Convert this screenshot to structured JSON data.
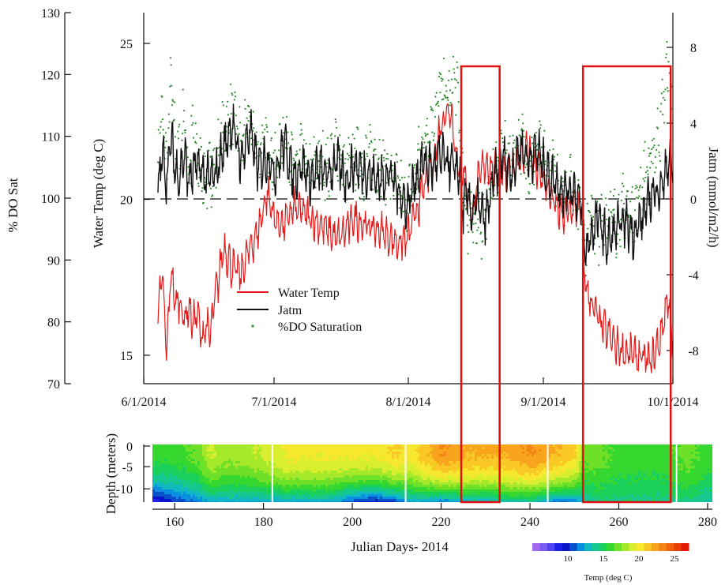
{
  "chart_data": [
    {
      "type": "line",
      "xlabel": "",
      "dates": [
        "6/1/2014",
        "7/1/2014",
        "8/1/2014",
        "9/1/2014",
        "10/1/2014"
      ],
      "xlim_julian": [
        152,
        274
      ],
      "axes": {
        "do_sat": {
          "label": "% DO Sat",
          "ticks": [
            70,
            80,
            90,
            100,
            110,
            120,
            130
          ],
          "ylim": [
            70,
            130
          ]
        },
        "water_temp": {
          "label": "Water Temp (deg C)",
          "ticks": [
            15,
            20,
            25
          ],
          "ylim": [
            14,
            26
          ]
        },
        "jatm": {
          "label": "Jatm (mmol/m2/h)",
          "ticks": [
            -8,
            -4,
            0,
            4,
            8
          ],
          "ylim": [
            -10,
            10
          ]
        }
      },
      "reference_line": {
        "axis": "jatm",
        "value": 0,
        "style": "dashed"
      },
      "legend": {
        "placement": "lower-left",
        "entries": [
          "Water Temp",
          "Jatm",
          "%DO Saturation"
        ]
      },
      "series": [
        {
          "name": "Water Temp",
          "axis": "water_temp",
          "color": "#e21a1a",
          "x": [
            155,
            156,
            157,
            158,
            159,
            160,
            161,
            162,
            163,
            164,
            165,
            166,
            167,
            168,
            169,
            170,
            172,
            174,
            176,
            178,
            180,
            182,
            184,
            186,
            188,
            190,
            192,
            194,
            196,
            198,
            200,
            202,
            204,
            206,
            208,
            210,
            212,
            214,
            216,
            218,
            220,
            222,
            224,
            225,
            226,
            227,
            228,
            230,
            232,
            234,
            236,
            238,
            240,
            242,
            244,
            246,
            248,
            250,
            252,
            253,
            254,
            256,
            258,
            260,
            262,
            264,
            266,
            268,
            270,
            271,
            272,
            273
          ],
          "values": [
            16.5,
            17.5,
            15.0,
            17.8,
            16.6,
            16.8,
            16.1,
            16.6,
            16.0,
            16.4,
            15.5,
            16.0,
            15.6,
            16.8,
            17.5,
            18.5,
            17.8,
            17.6,
            18.4,
            19.0,
            20.2,
            19.3,
            19.2,
            19.7,
            19.6,
            19.4,
            19.2,
            19.0,
            18.7,
            19.0,
            19.4,
            19.2,
            19.1,
            19.0,
            18.8,
            18.6,
            18.7,
            19.5,
            20.4,
            21.2,
            22.5,
            23.0,
            20.8,
            21.0,
            20.2,
            19.4,
            20.4,
            21.2,
            20.9,
            21.0,
            20.8,
            21.2,
            21.6,
            21.0,
            20.4,
            19.8,
            19.4,
            19.8,
            19.6,
            17.2,
            16.8,
            16.1,
            15.7,
            15.3,
            15.1,
            15.0,
            14.9,
            14.8,
            15.5,
            16.2,
            17.0,
            15.2
          ]
        },
        {
          "name": "Jatm",
          "axis": "jatm",
          "color": "#111111",
          "x": [
            155,
            156,
            157,
            158,
            159,
            160,
            161,
            162,
            164,
            166,
            168,
            170,
            172,
            174,
            176,
            178,
            180,
            182,
            184,
            186,
            188,
            190,
            192,
            194,
            196,
            198,
            200,
            202,
            204,
            206,
            208,
            210,
            212,
            214,
            216,
            218,
            220,
            222,
            224,
            225,
            226,
            227,
            228,
            230,
            232,
            234,
            236,
            238,
            240,
            242,
            244,
            246,
            248,
            250,
            252,
            253,
            254,
            256,
            258,
            260,
            262,
            264,
            266,
            268,
            270,
            271,
            272,
            273
          ],
          "values": [
            0.3,
            2.5,
            1.0,
            3.2,
            1.5,
            1.2,
            2.4,
            1.0,
            1.8,
            1.1,
            1.2,
            2.6,
            4.0,
            2.0,
            3.6,
            1.6,
            2.2,
            1.4,
            3.0,
            1.2,
            1.8,
            1.0,
            1.6,
            1.3,
            2.0,
            1.0,
            1.8,
            1.5,
            1.2,
            1.0,
            1.4,
            0.5,
            -0.4,
            1.0,
            2.0,
            1.6,
            2.2,
            1.8,
            1.5,
            -0.6,
            0.3,
            -0.8,
            -0.2,
            -1.2,
            1.0,
            2.2,
            1.4,
            2.8,
            2.0,
            2.6,
            1.4,
            1.0,
            0.4,
            0.6,
            -0.4,
            -3.0,
            -2.0,
            -1.0,
            -2.4,
            -1.6,
            -1.2,
            -1.8,
            -1.0,
            0.2,
            0.6,
            1.0,
            2.2,
            1.8
          ]
        },
        {
          "name": "%DO Saturation",
          "axis": "do_sat",
          "color": "#2e8b2e",
          "x": [
            155,
            156,
            157,
            158,
            159,
            160,
            161,
            162,
            163,
            164,
            166,
            168,
            170,
            172,
            174,
            176,
            178,
            180,
            182,
            184,
            186,
            188,
            190,
            192,
            194,
            196,
            198,
            200,
            202,
            204,
            206,
            208,
            210,
            212,
            214,
            216,
            218,
            220,
            222,
            223,
            224,
            225,
            226,
            227,
            228,
            230,
            232,
            234,
            236,
            238,
            240,
            242,
            244,
            246,
            248,
            250,
            252,
            253,
            254,
            256,
            258,
            260,
            262,
            264,
            266,
            268,
            270,
            271,
            272,
            273
          ],
          "values": [
            107,
            112,
            104,
            118,
            108,
            106,
            113,
            103,
            110,
            105,
            102,
            104,
            110,
            113,
            108,
            112,
            106,
            108,
            104,
            110,
            104,
            106,
            103,
            105,
            104,
            108,
            103,
            106,
            104,
            106,
            105,
            103,
            101,
            98,
            103,
            109,
            112,
            117,
            115,
            119,
            113,
            100,
            95,
            98,
            93,
            96,
            103,
            107,
            105,
            109,
            104,
            107,
            104,
            103,
            100,
            101,
            97,
            92,
            96,
            94,
            97,
            95,
            98,
            96,
            102,
            105,
            110,
            116,
            121,
            112
          ]
        }
      ],
      "annotation_boxes": [
        {
          "x_start_julian": 224.5,
          "x_end_julian": 233.3,
          "color": "#e01010"
        },
        {
          "x_start_julian": 252.4,
          "x_end_julian": 272.5,
          "color": "#e01010"
        }
      ]
    },
    {
      "type": "heatmap",
      "xlabel": "Julian Days- 2014",
      "ylabel": "Depth (meters)",
      "xticks": [
        160,
        180,
        200,
        220,
        240,
        260,
        280
      ],
      "yticks": [
        0,
        -5,
        -10
      ],
      "xlim": [
        155,
        282
      ],
      "ylim": [
        -13,
        0
      ],
      "colorbar": {
        "label": "Temp (deg C)",
        "ticks": [
          10,
          15,
          20,
          25
        ],
        "range": [
          5,
          27
        ],
        "colors": [
          "#a468f0",
          "#7a5cf2",
          "#4c44f0",
          "#1e22e8",
          "#0a14c8",
          "#0a50c8",
          "#0a8ee0",
          "#10b8c4",
          "#16c88e",
          "#1ad05a",
          "#36d830",
          "#6ee028",
          "#a6e82a",
          "#d8ee2e",
          "#f6e82c",
          "#fac824",
          "#f8a41c",
          "#f48414",
          "#f0640e",
          "#ec4008",
          "#e41806"
        ]
      },
      "temperature_profile": {
        "days": [
          155,
          160,
          165,
          168,
          170,
          175,
          180,
          185,
          190,
          195,
          200,
          205,
          210,
          213,
          215,
          220,
          225,
          230,
          235,
          240,
          245,
          250,
          252,
          255,
          260,
          265,
          270,
          275,
          280
        ],
        "surface": [
          16,
          16,
          17,
          19,
          18,
          18,
          19,
          20,
          20,
          20,
          20,
          20,
          21,
          20,
          21,
          23,
          22,
          22,
          22,
          23,
          22,
          21,
          17,
          17,
          16,
          16,
          16,
          17,
          16
        ],
        "bottom": [
          8,
          10,
          11,
          12,
          12,
          12,
          12,
          12,
          12,
          12,
          10,
          9,
          10,
          12,
          12,
          11,
          12,
          12,
          13,
          13,
          11,
          11,
          13,
          14,
          14,
          14,
          14,
          14,
          13
        ]
      },
      "annotation_boxes": [
        {
          "x_start": 224.5,
          "x_end": 233.3,
          "color": "#e01010"
        },
        {
          "x_start": 252.4,
          "x_end": 272.5,
          "color": "#e01010"
        }
      ]
    }
  ]
}
